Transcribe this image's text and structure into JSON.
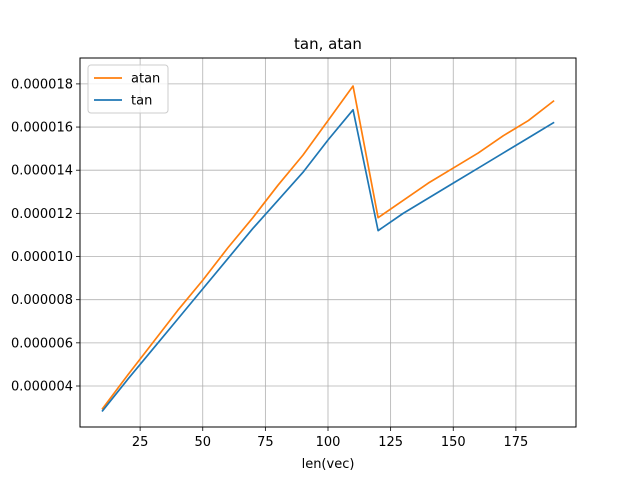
{
  "chart_data": {
    "type": "line",
    "title": "tan, atan",
    "xlabel": "len(vec)",
    "ylabel": "",
    "xlim": [
      1,
      199
    ],
    "ylim": [
      2.1e-06,
      1.92e-05
    ],
    "xticks": [
      25,
      50,
      75,
      100,
      125,
      150,
      175
    ],
    "xtick_labels": [
      "25",
      "50",
      "75",
      "100",
      "125",
      "150",
      "175"
    ],
    "yticks": [
      4e-06,
      6e-06,
      8e-06,
      1e-05,
      1.2e-05,
      1.4e-05,
      1.6e-05,
      1.8e-05
    ],
    "ytick_labels": [
      "0.000004",
      "0.000006",
      "0.000008",
      "0.000010",
      "0.000012",
      "0.000014",
      "0.000016",
      "0.000018"
    ],
    "grid": true,
    "legend_position": "top-left",
    "series": [
      {
        "name": "atan",
        "color": "#ff7f0e",
        "x": [
          10,
          20,
          30,
          40,
          50,
          60,
          70,
          80,
          90,
          100,
          110,
          120,
          130,
          140,
          150,
          160,
          170,
          180,
          190
        ],
        "y": [
          2.95e-06,
          4.5e-06,
          6e-06,
          7.5e-06,
          8.9e-06,
          1.04e-05,
          1.18e-05,
          1.33e-05,
          1.47e-05,
          1.63e-05,
          1.79e-05,
          1.18e-05,
          1.26e-05,
          1.34e-05,
          1.41e-05,
          1.48e-05,
          1.56e-05,
          1.63e-05,
          1.72e-05
        ]
      },
      {
        "name": "tan",
        "color": "#1f77b4",
        "x": [
          10,
          20,
          30,
          40,
          50,
          60,
          70,
          80,
          90,
          100,
          110,
          120,
          130,
          140,
          150,
          160,
          170,
          180,
          190
        ],
        "y": [
          2.85e-06,
          4.3e-06,
          5.7e-06,
          7.1e-06,
          8.5e-06,
          9.9e-06,
          1.13e-05,
          1.26e-05,
          1.39e-05,
          1.54e-05,
          1.68e-05,
          1.12e-05,
          1.2e-05,
          1.27e-05,
          1.34e-05,
          1.41e-05,
          1.48e-05,
          1.55e-05,
          1.62e-05
        ]
      }
    ]
  }
}
